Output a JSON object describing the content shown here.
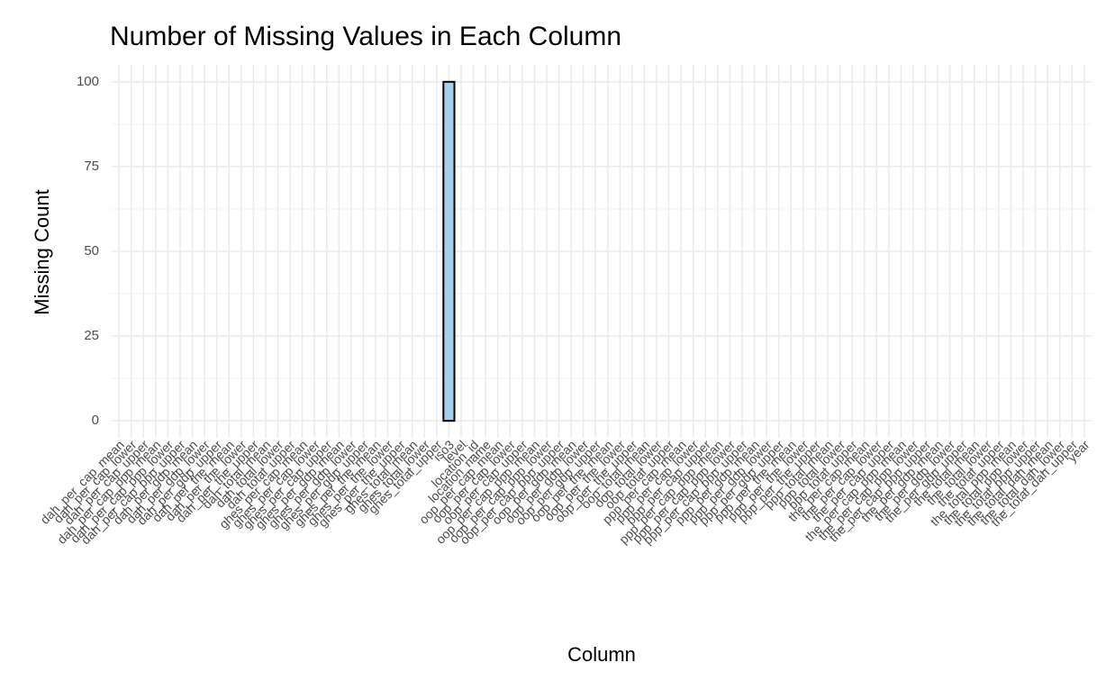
{
  "chart_data": {
    "type": "bar",
    "title": "Number of Missing Values in Each Column",
    "x_label": "Column",
    "y_label": "Missing Count",
    "categories": [
      "dah_per_cap_mean",
      "dah_per_cap_lower",
      "dah_per_cap_upper",
      "dah_per_cap_ppp_mean",
      "dah_per_cap_ppp_lower",
      "dah_per_cap_ppp_upper",
      "dah_per_gdp_mean",
      "dah_per_gdp_lower",
      "dah_per_gdp_upper",
      "dah_per_the_mean",
      "dah_per_the_lower",
      "dah_per_the_upper",
      "dah_total_mean",
      "dah_total_lower",
      "dah_total_upper",
      "ghes_per_cap_mean",
      "ghes_per_cap_lower",
      "ghes_per_cap_upper",
      "ghes_per_gdp_mean",
      "ghes_per_gdp_lower",
      "ghes_per_gdp_upper",
      "ghes_per_the_mean",
      "ghes_per_the_lower",
      "ghes_per_the_upper",
      "ghes_total_mean",
      "ghes_total_lower",
      "ghes_total_upper",
      "iso3",
      "level",
      "location_id",
      "location_name",
      "oop_per_cap_mean",
      "oop_per_cap_lower",
      "oop_per_cap_upper",
      "oop_per_cap_ppp_mean",
      "oop_per_cap_ppp_lower",
      "oop_per_cap_ppp_upper",
      "oop_per_gdp_mean",
      "oop_per_gdp_lower",
      "oop_per_gdp_upper",
      "oop_per_the_mean",
      "oop_per_the_lower",
      "oop_per_the_upper",
      "oop_total_mean",
      "oop_total_lower",
      "oop_total_upper",
      "ppp_per_cap_mean",
      "ppp_per_cap_lower",
      "ppp_per_cap_upper",
      "ppp_per_cap_ppp_mean",
      "ppp_per_cap_ppp_lower",
      "ppp_per_cap_ppp_upper",
      "ppp_per_gdp_mean",
      "ppp_per_gdp_lower",
      "ppp_per_gdp_upper",
      "ppp_per_the_mean",
      "ppp_per_the_lower",
      "ppp_per_the_upper",
      "ppp_total_mean",
      "ppp_total_lower",
      "ppp_total_upper",
      "the_per_cap_mean",
      "the_per_cap_lower",
      "the_per_cap_upper",
      "the_per_cap_ppp_mean",
      "the_per_cap_ppp_lower",
      "the_per_cap_ppp_upper",
      "the_per_gdp_mean",
      "the_per_gdp_lower",
      "the_per_gdp_upper",
      "the_total_mean",
      "the_total_lower",
      "the_total_upper",
      "the_total_ppp_mean",
      "the_total_ppp_lower",
      "the_total_ppp_upper",
      "the_total_dah_mean",
      "the_total_dah_lower",
      "the_total_dah_upper",
      "year"
    ],
    "values": [
      0,
      0,
      0,
      0,
      0,
      0,
      0,
      0,
      0,
      0,
      0,
      0,
      0,
      0,
      0,
      0,
      0,
      0,
      0,
      0,
      0,
      0,
      0,
      0,
      0,
      0,
      0,
      100,
      0,
      0,
      0,
      0,
      0,
      0,
      0,
      0,
      0,
      0,
      0,
      0,
      0,
      0,
      0,
      0,
      0,
      0,
      0,
      0,
      0,
      0,
      0,
      0,
      0,
      0,
      0,
      0,
      0,
      0,
      0,
      0,
      0,
      0,
      0,
      0,
      0,
      0,
      0,
      0,
      0,
      0,
      0,
      0,
      0,
      0,
      0,
      0,
      0,
      0,
      0,
      0
    ],
    "color": "#a6cfea",
    "edge_color": "#000000",
    "ylim": [
      -5,
      105
    ],
    "yticks": [
      0,
      25,
      50,
      75,
      100
    ],
    "grid": true
  }
}
